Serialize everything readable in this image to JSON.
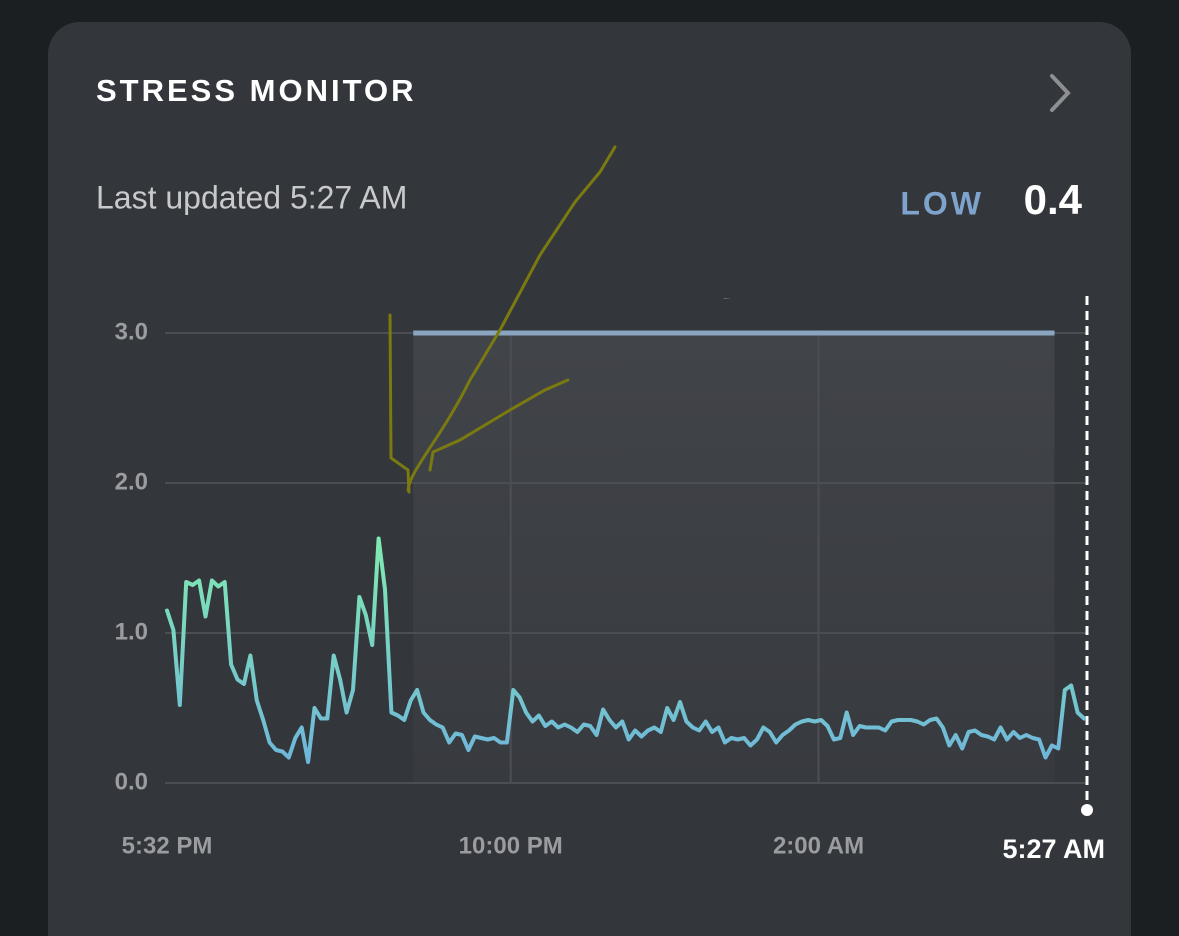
{
  "header": {
    "title": "STRESS MONITOR",
    "updated": "Last updated 5:27 AM",
    "level": "LOW",
    "score": "0.4"
  },
  "chart_data": {
    "type": "line",
    "x": [
      1052,
      1057,
      1062,
      1067,
      1072,
      1077,
      1082,
      1087,
      1092,
      1097,
      1102,
      1107,
      1112,
      1117,
      1122,
      1127,
      1132,
      1137,
      1142,
      1147,
      1152,
      1157,
      1162,
      1167,
      1172,
      1177,
      1182,
      1187,
      1192,
      1197,
      1202,
      1207,
      1212,
      1217,
      1222,
      1227,
      1232,
      1237,
      1242,
      1247,
      1252,
      1257,
      1262,
      1267,
      1272,
      1277,
      1282,
      1287,
      1292,
      1297,
      1302,
      1307,
      1312,
      1317,
      1322,
      1327,
      1332,
      1337,
      1342,
      1347,
      1352,
      1357,
      1362,
      1367,
      1372,
      1377,
      1382,
      1387,
      1392,
      1397,
      1402,
      1407,
      1412,
      1417,
      1422,
      1427,
      1432,
      1437,
      1442,
      1447,
      1452,
      1457,
      1462,
      1467,
      1472,
      1477,
      1482,
      1487,
      1492,
      1497,
      1502,
      1507,
      1512,
      1517,
      1522,
      1527,
      1532,
      1537,
      1542,
      1547,
      1552,
      1557,
      1562,
      1567,
      1572,
      1577,
      1582,
      1587,
      1592,
      1597,
      1602,
      1607,
      1612,
      1617,
      1622,
      1627,
      1632,
      1637,
      1642,
      1647,
      1652,
      1657,
      1662,
      1667,
      1672,
      1677,
      1682,
      1687,
      1692,
      1697,
      1702,
      1707,
      1712,
      1717,
      1722,
      1727,
      1732,
      1737,
      1742,
      1747,
      1752,
      1757,
      1762,
      1767
    ],
    "values": [
      1.15,
      1.02,
      0.52,
      1.34,
      1.32,
      1.35,
      1.11,
      1.35,
      1.31,
      1.34,
      0.79,
      0.69,
      0.66,
      0.85,
      0.55,
      0.42,
      0.27,
      0.22,
      0.21,
      0.17,
      0.3,
      0.37,
      0.14,
      0.5,
      0.43,
      0.43,
      0.85,
      0.69,
      0.47,
      0.62,
      1.24,
      1.12,
      0.92,
      1.63,
      1.29,
      0.47,
      0.45,
      0.42,
      0.55,
      0.62,
      0.47,
      0.42,
      0.39,
      0.37,
      0.27,
      0.33,
      0.32,
      0.22,
      0.31,
      0.3,
      0.29,
      0.3,
      0.27,
      0.27,
      0.62,
      0.57,
      0.47,
      0.41,
      0.45,
      0.38,
      0.41,
      0.37,
      0.39,
      0.37,
      0.34,
      0.39,
      0.38,
      0.32,
      0.49,
      0.42,
      0.37,
      0.41,
      0.29,
      0.35,
      0.31,
      0.35,
      0.37,
      0.34,
      0.5,
      0.42,
      0.54,
      0.41,
      0.37,
      0.35,
      0.41,
      0.34,
      0.37,
      0.27,
      0.3,
      0.29,
      0.3,
      0.25,
      0.29,
      0.37,
      0.34,
      0.27,
      0.32,
      0.35,
      0.39,
      0.41,
      0.42,
      0.41,
      0.42,
      0.38,
      0.29,
      0.3,
      0.47,
      0.32,
      0.38,
      0.37,
      0.37,
      0.37,
      0.35,
      0.41,
      0.42,
      0.42,
      0.42,
      0.41,
      0.39,
      0.42,
      0.43,
      0.37,
      0.25,
      0.32,
      0.23,
      0.34,
      0.35,
      0.32,
      0.31,
      0.29,
      0.37,
      0.29,
      0.34,
      0.3,
      0.32,
      0.3,
      0.29,
      0.17,
      0.25,
      0.23,
      0.62,
      0.65,
      0.47,
      0.43
    ],
    "color": "#6fb6da",
    "high_color": "#80ebb0",
    "xlim": [
      1052,
      1767
    ],
    "xticks": [
      {
        "value": 1052,
        "label": "5:32 PM"
      },
      {
        "value": 1320,
        "label": "10:00 PM"
      },
      {
        "value": 1560,
        "label": "2:00 AM"
      },
      {
        "value": 1767,
        "label": "5:27 AM"
      }
    ],
    "ylim": [
      0,
      3
    ],
    "yticks": [
      {
        "value": 0,
        "label": "0.0"
      },
      {
        "value": 1,
        "label": "1.0"
      },
      {
        "value": 2,
        "label": "2.0"
      },
      {
        "value": 3,
        "label": "3.0"
      }
    ],
    "sleep": {
      "start": 1244,
      "end": 1744,
      "level": 3
    },
    "grid": true
  }
}
